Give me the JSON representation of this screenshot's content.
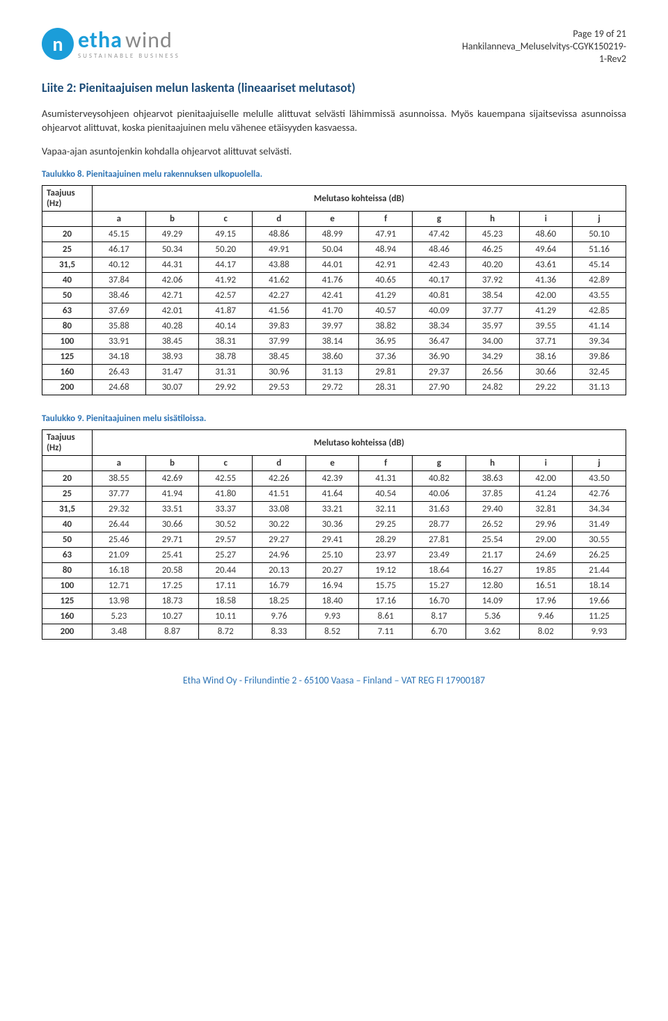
{
  "logo": {
    "symbol": "n",
    "name1": "etha",
    "name2": "wind",
    "tagline": "SUSTAINABLE BUSINESS"
  },
  "pageMeta": {
    "page": "Page 19 of 21",
    "doc": "Hankilanneva_Meluselvitys-CGYK150219-",
    "rev": "1-Rev2"
  },
  "title": "Liite 2: Pienitaajuisen melun laskenta (lineaariset melutasot)",
  "para1": "Asumisterveysohjeen ohjearvot pienitaajuiselle melulle alittuvat selvästi lähimmissä asunnoissa. Myös kauempana sijaitsevissa asunnoissa ohjearvot alittuvat, koska pienitaajuinen melu vähenee etäisyyden kasvaessa.",
  "para2": "Vapaa-ajan asuntojenkin kohdalla ohjearvot alittuvat selvästi.",
  "table8": {
    "caption": "Taulukko 8. Pienitaajuinen melu rakennuksen ulkopuolella.",
    "freqHeader": "Taajuus (Hz)",
    "spanHeader": "Melutaso kohteissa (dB)",
    "cols": [
      "a",
      "b",
      "c",
      "d",
      "e",
      "f",
      "g",
      "h",
      "i",
      "j"
    ],
    "rows": [
      {
        "f": "20",
        "v": [
          "45.15",
          "49.29",
          "49.15",
          "48.86",
          "48.99",
          "47.91",
          "47.42",
          "45.23",
          "48.60",
          "50.10"
        ]
      },
      {
        "f": "25",
        "v": [
          "46.17",
          "50.34",
          "50.20",
          "49.91",
          "50.04",
          "48.94",
          "48.46",
          "46.25",
          "49.64",
          "51.16"
        ]
      },
      {
        "f": "31,5",
        "v": [
          "40.12",
          "44.31",
          "44.17",
          "43.88",
          "44.01",
          "42.91",
          "42.43",
          "40.20",
          "43.61",
          "45.14"
        ]
      },
      {
        "f": "40",
        "v": [
          "37.84",
          "42.06",
          "41.92",
          "41.62",
          "41.76",
          "40.65",
          "40.17",
          "37.92",
          "41.36",
          "42.89"
        ]
      },
      {
        "f": "50",
        "v": [
          "38.46",
          "42.71",
          "42.57",
          "42.27",
          "42.41",
          "41.29",
          "40.81",
          "38.54",
          "42.00",
          "43.55"
        ]
      },
      {
        "f": "63",
        "v": [
          "37.69",
          "42.01",
          "41.87",
          "41.56",
          "41.70",
          "40.57",
          "40.09",
          "37.77",
          "41.29",
          "42.85"
        ]
      },
      {
        "f": "80",
        "v": [
          "35.88",
          "40.28",
          "40.14",
          "39.83",
          "39.97",
          "38.82",
          "38.34",
          "35.97",
          "39.55",
          "41.14"
        ]
      },
      {
        "f": "100",
        "v": [
          "33.91",
          "38.45",
          "38.31",
          "37.99",
          "38.14",
          "36.95",
          "36.47",
          "34.00",
          "37.71",
          "39.34"
        ]
      },
      {
        "f": "125",
        "v": [
          "34.18",
          "38.93",
          "38.78",
          "38.45",
          "38.60",
          "37.36",
          "36.90",
          "34.29",
          "38.16",
          "39.86"
        ]
      },
      {
        "f": "160",
        "v": [
          "26.43",
          "31.47",
          "31.31",
          "30.96",
          "31.13",
          "29.81",
          "29.37",
          "26.56",
          "30.66",
          "32.45"
        ]
      },
      {
        "f": "200",
        "v": [
          "24.68",
          "30.07",
          "29.92",
          "29.53",
          "29.72",
          "28.31",
          "27.90",
          "24.82",
          "29.22",
          "31.13"
        ]
      }
    ]
  },
  "table9": {
    "caption": "Taulukko 9. Pienitaajuinen melu sisätiloissa.",
    "freqHeader": "Taajuus (Hz)",
    "spanHeader": "Melutaso kohteissa (dB)",
    "cols": [
      "a",
      "b",
      "c",
      "d",
      "e",
      "f",
      "g",
      "h",
      "i",
      "j"
    ],
    "rows": [
      {
        "f": "20",
        "v": [
          "38.55",
          "42.69",
          "42.55",
          "42.26",
          "42.39",
          "41.31",
          "40.82",
          "38.63",
          "42.00",
          "43.50"
        ]
      },
      {
        "f": "25",
        "v": [
          "37.77",
          "41.94",
          "41.80",
          "41.51",
          "41.64",
          "40.54",
          "40.06",
          "37.85",
          "41.24",
          "42.76"
        ]
      },
      {
        "f": "31,5",
        "v": [
          "29.32",
          "33.51",
          "33.37",
          "33.08",
          "33.21",
          "32.11",
          "31.63",
          "29.40",
          "32.81",
          "34.34"
        ]
      },
      {
        "f": "40",
        "v": [
          "26.44",
          "30.66",
          "30.52",
          "30.22",
          "30.36",
          "29.25",
          "28.77",
          "26.52",
          "29.96",
          "31.49"
        ]
      },
      {
        "f": "50",
        "v": [
          "25.46",
          "29.71",
          "29.57",
          "29.27",
          "29.41",
          "28.29",
          "27.81",
          "25.54",
          "29.00",
          "30.55"
        ]
      },
      {
        "f": "63",
        "v": [
          "21.09",
          "25.41",
          "25.27",
          "24.96",
          "25.10",
          "23.97",
          "23.49",
          "21.17",
          "24.69",
          "26.25"
        ]
      },
      {
        "f": "80",
        "v": [
          "16.18",
          "20.58",
          "20.44",
          "20.13",
          "20.27",
          "19.12",
          "18.64",
          "16.27",
          "19.85",
          "21.44"
        ]
      },
      {
        "f": "100",
        "v": [
          "12.71",
          "17.25",
          "17.11",
          "16.79",
          "16.94",
          "15.75",
          "15.27",
          "12.80",
          "16.51",
          "18.14"
        ]
      },
      {
        "f": "125",
        "v": [
          "13.98",
          "18.73",
          "18.58",
          "18.25",
          "18.40",
          "17.16",
          "16.70",
          "14.09",
          "17.96",
          "19.66"
        ]
      },
      {
        "f": "160",
        "v": [
          "5.23",
          "10.27",
          "10.11",
          "9.76",
          "9.93",
          "8.61",
          "8.17",
          "5.36",
          "9.46",
          "11.25"
        ]
      },
      {
        "f": "200",
        "v": [
          "3.48",
          "8.87",
          "8.72",
          "8.33",
          "8.52",
          "7.11",
          "6.70",
          "3.62",
          "8.02",
          "9.93"
        ]
      }
    ]
  },
  "footer": "Etha Wind Oy - Frilundintie 2 - 65100 Vaasa – Finland – VAT REG  FI 17900187"
}
